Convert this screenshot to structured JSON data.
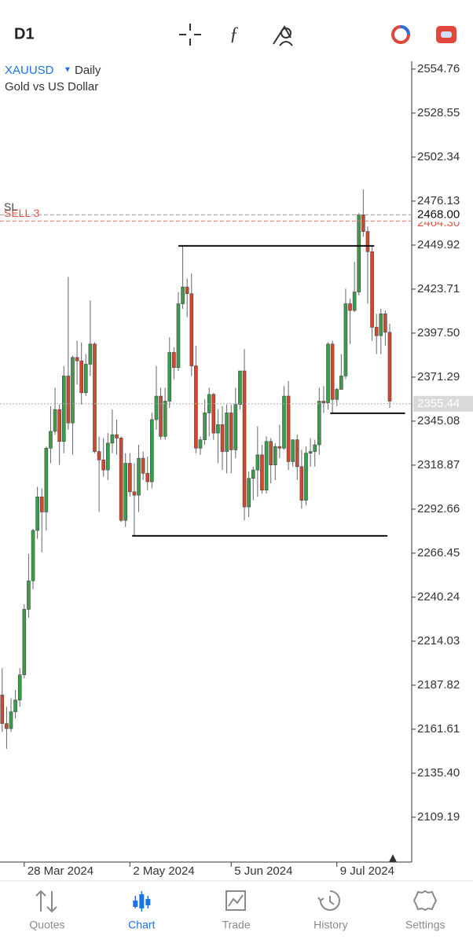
{
  "toolbar": {
    "timeframe": "D1"
  },
  "nav": {
    "items": [
      "Quotes",
      "Chart",
      "Trade",
      "History",
      "Settings"
    ],
    "active": "Chart"
  },
  "chart_data": {
    "type": "candlestick",
    "symbol": "XAUUSD",
    "period": "Daily",
    "description": "Gold vs US Dollar",
    "up_color": "#3a9e48",
    "down_color": "#d0492f",
    "open": [
      2182,
      2165,
      2162,
      2172,
      2179,
      2194,
      2233,
      2250,
      2280,
      2300,
      2291,
      2329,
      2339,
      2352,
      2333,
      2372,
      2344,
      2383,
      2381,
      2362,
      2379,
      2391,
      2327,
      2322,
      2316,
      2332,
      2337,
      2335,
      2286,
      2320,
      2303,
      2301,
      2323,
      2314,
      2309,
      2346,
      2360,
      2336,
      2357,
      2386,
      2377,
      2415,
      2425,
      2421,
      2378,
      2329,
      2334,
      2350,
      2361,
      2338,
      2343,
      2327,
      2350,
      2328,
      2355,
      2375,
      2294,
      2311,
      2316,
      2325,
      2304,
      2333,
      2319,
      2330,
      2329,
      2360,
      2321,
      2334,
      2318,
      2298,
      2326,
      2327,
      2331,
      2357,
      2356,
      2391,
      2358,
      2364,
      2372,
      2415,
      2411,
      2422,
      2468,
      2458,
      2446,
      2401,
      2396,
      2409,
      2398
    ],
    "high": [
      2198,
      2175,
      2180,
      2185,
      2198,
      2236,
      2266,
      2281,
      2306,
      2305,
      2330,
      2354,
      2365,
      2355,
      2378,
      2431,
      2384,
      2393,
      2392,
      2385,
      2417,
      2392,
      2336,
      2335,
      2338,
      2352,
      2346,
      2336,
      2326,
      2326,
      2320,
      2331,
      2327,
      2324,
      2350,
      2378,
      2365,
      2365,
      2395,
      2389,
      2422,
      2450,
      2430,
      2433,
      2390,
      2336,
      2358,
      2365,
      2362,
      2352,
      2354,
      2355,
      2355,
      2365,
      2375,
      2388,
      2315,
      2318,
      2342,
      2331,
      2336,
      2335,
      2332,
      2343,
      2366,
      2369,
      2334,
      2337,
      2328,
      2330,
      2335,
      2334,
      2365,
      2366,
      2392,
      2393,
      2365,
      2385,
      2424,
      2418,
      2440,
      2469,
      2483,
      2461,
      2449,
      2409,
      2412,
      2411,
      2403
    ],
    "low": [
      2160,
      2150,
      2160,
      2168,
      2175,
      2192,
      2228,
      2245,
      2275,
      2267,
      2280,
      2320,
      2337,
      2319,
      2326,
      2340,
      2325,
      2367,
      2355,
      2360,
      2372,
      2326,
      2291,
      2312,
      2310,
      2326,
      2325,
      2285,
      2282,
      2300,
      2277,
      2291,
      2310,
      2304,
      2305,
      2340,
      2334,
      2334,
      2353,
      2370,
      2375,
      2412,
      2407,
      2372,
      2326,
      2325,
      2331,
      2336,
      2334,
      2320,
      2316,
      2314,
      2314,
      2323,
      2352,
      2286,
      2288,
      2298,
      2300,
      2302,
      2302,
      2308,
      2310,
      2323,
      2328,
      2316,
      2318,
      2310,
      2293,
      2295,
      2318,
      2318,
      2325,
      2350,
      2352,
      2350,
      2354,
      2364,
      2370,
      2391,
      2410,
      2420,
      2455,
      2415,
      2393,
      2385,
      2385,
      2390,
      2353
    ],
    "close": [
      2165,
      2162,
      2172,
      2179,
      2194,
      2233,
      2250,
      2280,
      2300,
      2291,
      2329,
      2339,
      2352,
      2333,
      2372,
      2344,
      2383,
      2381,
      2362,
      2379,
      2391,
      2327,
      2322,
      2316,
      2332,
      2337,
      2335,
      2286,
      2320,
      2303,
      2301,
      2323,
      2314,
      2309,
      2346,
      2360,
      2336,
      2357,
      2386,
      2377,
      2415,
      2425,
      2421,
      2378,
      2329,
      2334,
      2350,
      2361,
      2338,
      2343,
      2327,
      2350,
      2328,
      2355,
      2375,
      2294,
      2311,
      2316,
      2325,
      2304,
      2333,
      2319,
      2330,
      2329,
      2360,
      2321,
      2334,
      2318,
      2298,
      2326,
      2327,
      2331,
      2357,
      2356,
      2391,
      2358,
      2364,
      2372,
      2415,
      2411,
      2422,
      2468,
      2458,
      2446,
      2401,
      2396,
      2409,
      2398,
      2357
    ],
    "xlim": [
      -0.5,
      93
    ],
    "xticks": [
      {
        "value": 5,
        "label": "28 Mar 2024"
      },
      {
        "value": 29,
        "label": "2 May 2024"
      },
      {
        "value": 52,
        "label": "5 Jun 2024"
      },
      {
        "value": 76,
        "label": "9 Jul 2024"
      }
    ],
    "ylim": [
      2082.5,
      2559.4
    ],
    "yticks": [
      2554.76,
      2528.55,
      2502.34,
      2476.13,
      2449.92,
      2423.71,
      {
        "value": 2397.5,
        "label": "2397.50"
      },
      2371.29,
      2345.08,
      2318.87,
      2292.66,
      2266.45,
      2240.24,
      2214.03,
      2187.82,
      2161.61,
      {
        "value": 2135.4,
        "label": "2135.40"
      },
      2109.19
    ],
    "trend_lines": [
      {
        "price": 2449.5,
        "from": 40,
        "to": 84.5
      },
      {
        "price": 2276.8,
        "from": 29.5,
        "to": 87.5
      },
      {
        "price": 2349.8,
        "from": 74.5,
        "to": 91.5
      }
    ],
    "sell": {
      "name": "SELL 3",
      "price": 2464.3,
      "price_label": "2464.30"
    },
    "sl": {
      "name": "SL",
      "price": 2468,
      "price_label": "2468.00"
    },
    "bid": 2355.44
  }
}
